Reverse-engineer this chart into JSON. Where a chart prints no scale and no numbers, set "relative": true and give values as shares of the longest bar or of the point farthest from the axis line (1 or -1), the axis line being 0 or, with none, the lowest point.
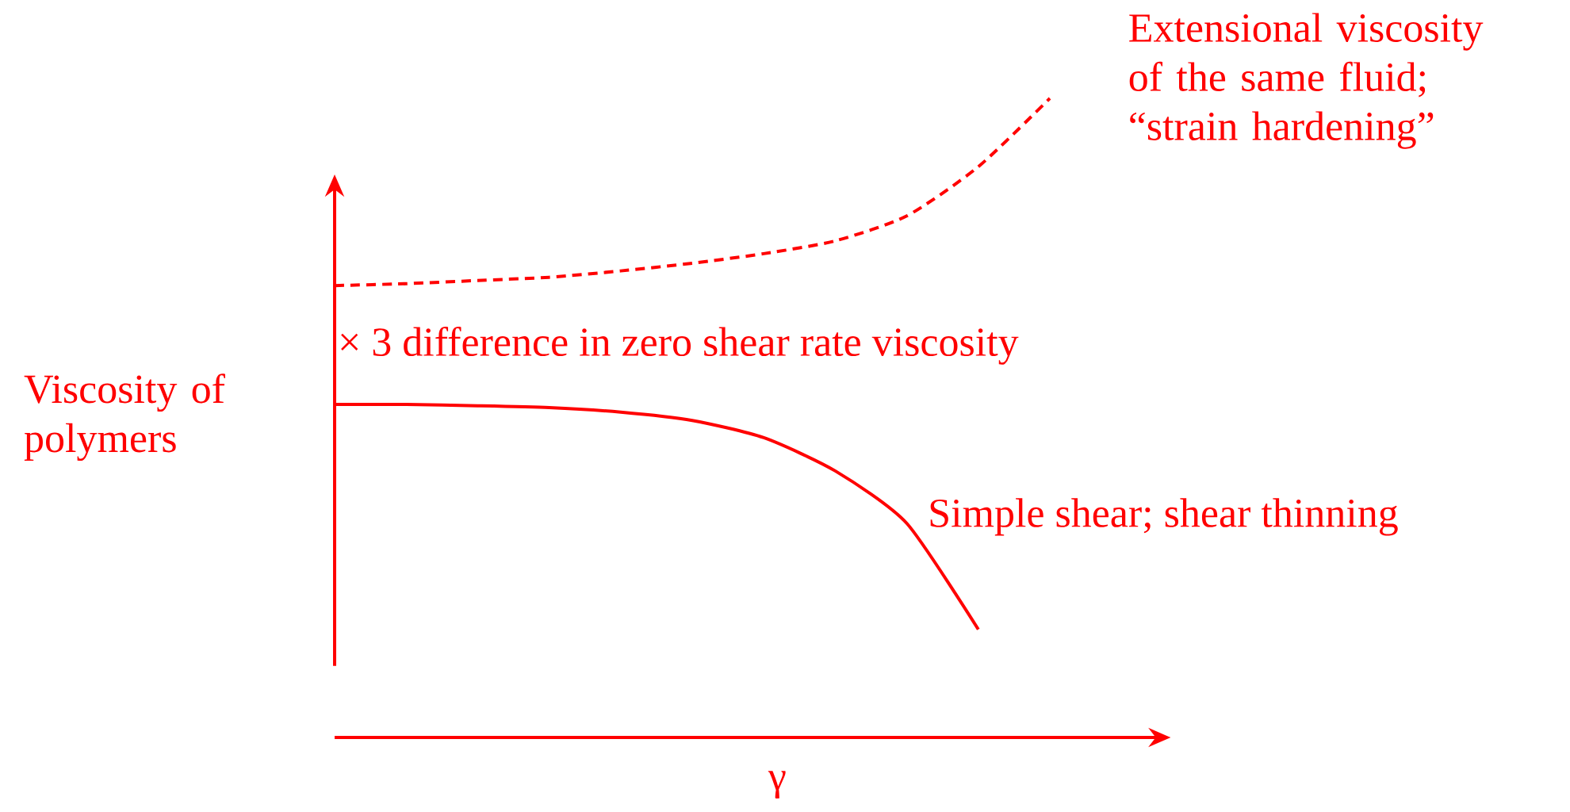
{
  "chart_data": {
    "type": "line",
    "relative": true,
    "xlabel": "γ",
    "ylabel": "Viscosity of polymers",
    "categories": [
      null,
      null,
      null,
      null,
      null,
      null,
      null,
      null,
      null,
      null,
      null
    ],
    "series": [
      {
        "color": "#ff0000",
        "line_style": "dashed",
        "values": [
          0.707,
          0.71,
          0.715,
          0.72,
          0.73,
          0.742,
          0.757,
          0.777,
          0.816,
          0.893,
          1
        ]
      },
      {
        "color": "#ff0000",
        "line_style": "solid",
        "values": [
          0.521,
          0.521,
          0.519,
          0.516,
          0.509,
          0.496,
          0.469,
          0.417,
          0.335,
          0.169,
          null
        ]
      }
    ],
    "annotations": [
      "Extensional viscosity of the same fluid; “strain hardening”",
      "× 3 difference in zero shear rate viscosity",
      "Simple shear; shear thinning"
    ]
  }
}
